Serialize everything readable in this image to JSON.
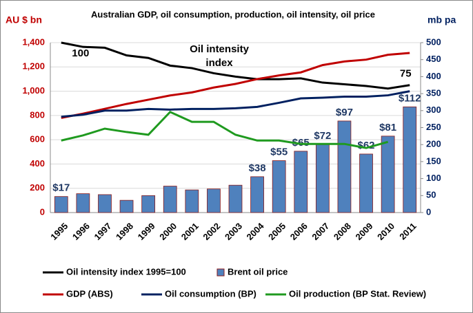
{
  "chart_data": {
    "type": "combo",
    "title": "Australian GDP, oil consumption, production, oil intensity,  oil price",
    "ylabel": "AU $ bn",
    "y2label": "mb pa",
    "categories": [
      "1995",
      "1996",
      "1997",
      "1998",
      "1999",
      "2000",
      "2001",
      "2002",
      "2003",
      "2004",
      "2005",
      "2006",
      "2007",
      "2008",
      "2009",
      "2010",
      "2011"
    ],
    "ylim": [
      0,
      1400
    ],
    "yticks": [
      0,
      200,
      400,
      600,
      800,
      {
        "value": 1000,
        "label": "1,000"
      },
      {
        "value": 1200,
        "label": "1,200"
      },
      {
        "value": 1400,
        "label": "1,400"
      }
    ],
    "y2lim": [
      0,
      500
    ],
    "y2ticks": [
      0,
      50,
      100,
      150,
      200,
      250,
      300,
      350,
      400,
      450,
      500
    ],
    "y3lim": [
      0,
      180
    ],
    "y4lim": [
      0,
      100
    ],
    "grid": true,
    "annotations": [
      "Oil intensity",
      "index"
    ],
    "series": [
      {
        "name": "Brent oil price",
        "type": "bar",
        "axis": "y3",
        "color": "#4f81bd",
        "values": [
          17,
          20,
          19,
          13,
          18,
          28,
          24,
          25,
          29,
          38,
          55,
          65,
          72,
          97,
          62,
          81,
          112
        ],
        "value_labels": [
          "$17",
          null,
          null,
          null,
          null,
          null,
          null,
          null,
          null,
          "$38",
          "$55",
          "$65",
          "$72",
          "$97",
          "$62",
          "$81",
          "$112"
        ]
      },
      {
        "name": "Oil intensity index 1995=100",
        "type": "line",
        "axis": "y4",
        "color": "#000000",
        "values": [
          100,
          97.5,
          97,
          92.5,
          91,
          86.5,
          85,
          82,
          80,
          78.5,
          78.5,
          79,
          76.5,
          75.5,
          74.5,
          73,
          75
        ],
        "value_labels": [
          "100",
          null,
          null,
          null,
          null,
          null,
          null,
          null,
          null,
          null,
          null,
          null,
          null,
          null,
          null,
          null,
          "75"
        ]
      },
      {
        "name": "GDP (ABS)",
        "type": "line",
        "axis": "y",
        "color": "#c00000",
        "values": [
          780,
          815,
          855,
          895,
          930,
          965,
          990,
          1030,
          1060,
          1100,
          1130,
          1155,
          1215,
          1245,
          1260,
          1300,
          1315
        ]
      },
      {
        "name": "Oil consumption (BP)",
        "type": "line",
        "axis": "y2",
        "color": "#002060",
        "values": [
          282,
          288,
          300,
          300,
          305,
          303,
          305,
          305,
          307,
          311,
          323,
          336,
          338,
          341,
          341,
          345,
          357
        ]
      },
      {
        "name": "Oil production (BP Stat. Review)",
        "type": "line",
        "axis": "y2",
        "color": "#1f9a1f",
        "values": [
          212,
          227,
          247,
          237,
          229,
          296,
          267,
          267,
          229,
          212,
          212,
          202,
          202,
          202,
          190,
          208,
          null
        ]
      }
    ]
  }
}
